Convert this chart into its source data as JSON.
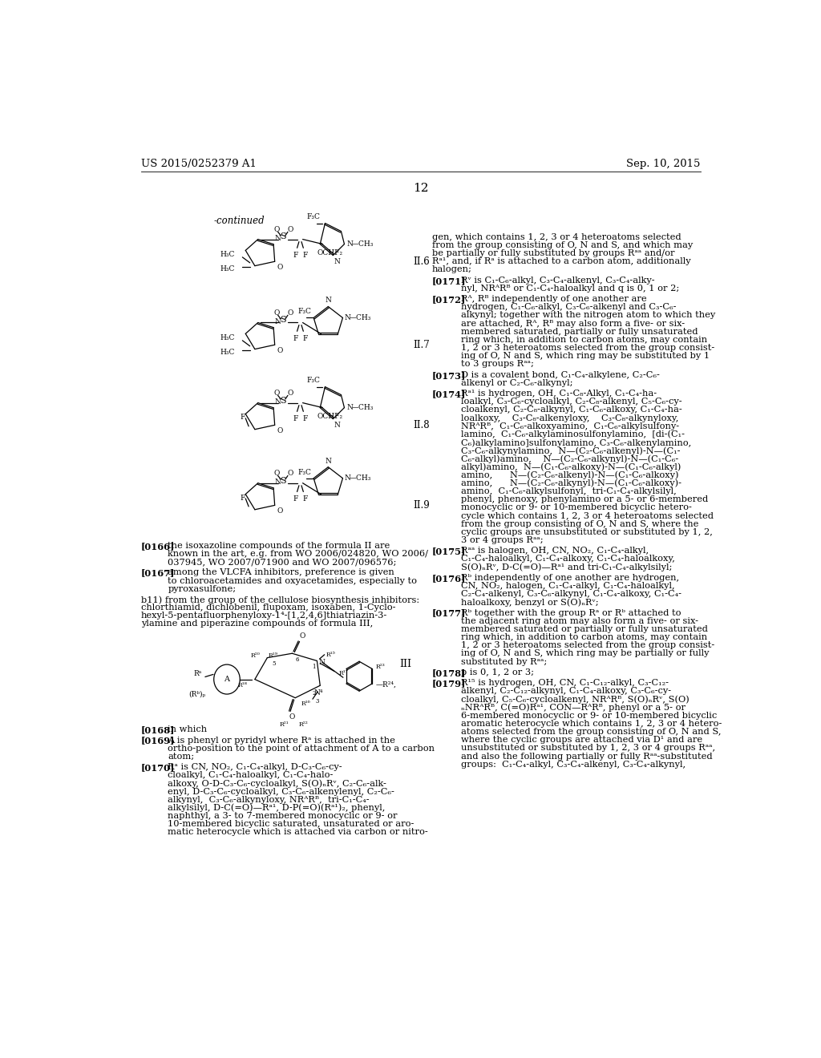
{
  "bg": "#ffffff",
  "header_left": "US 2015/0252379 A1",
  "header_right": "Sep. 10, 2015",
  "page_num": "12"
}
